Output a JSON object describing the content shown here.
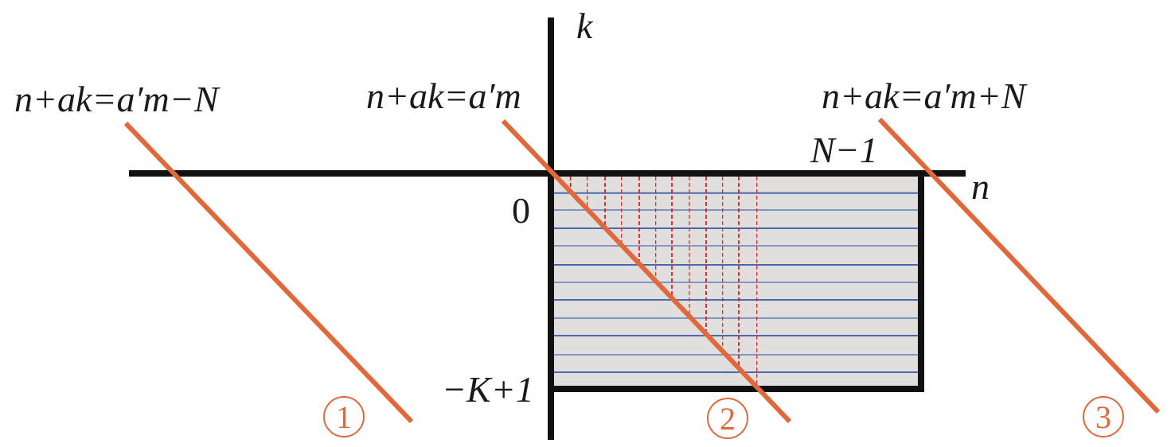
{
  "labels": {
    "axis_k": "k",
    "axis_n": "n",
    "origin": "0",
    "n_max": "N−1",
    "k_min": "−K+1",
    "line1_eq": "n+ak=a′m−N",
    "line2_eq": "n+ak=a′m",
    "line3_eq": "n+ak=a′m+N",
    "line1_num": "1",
    "line2_num": "2",
    "line3_num": "3"
  },
  "colors": {
    "diagonal_lines": "#E0683A",
    "horizontal_rows": "#4A6AB0",
    "dashed_columns": "#E02020",
    "region_fill": "#E0DFDE",
    "axes": "#111111"
  }
}
